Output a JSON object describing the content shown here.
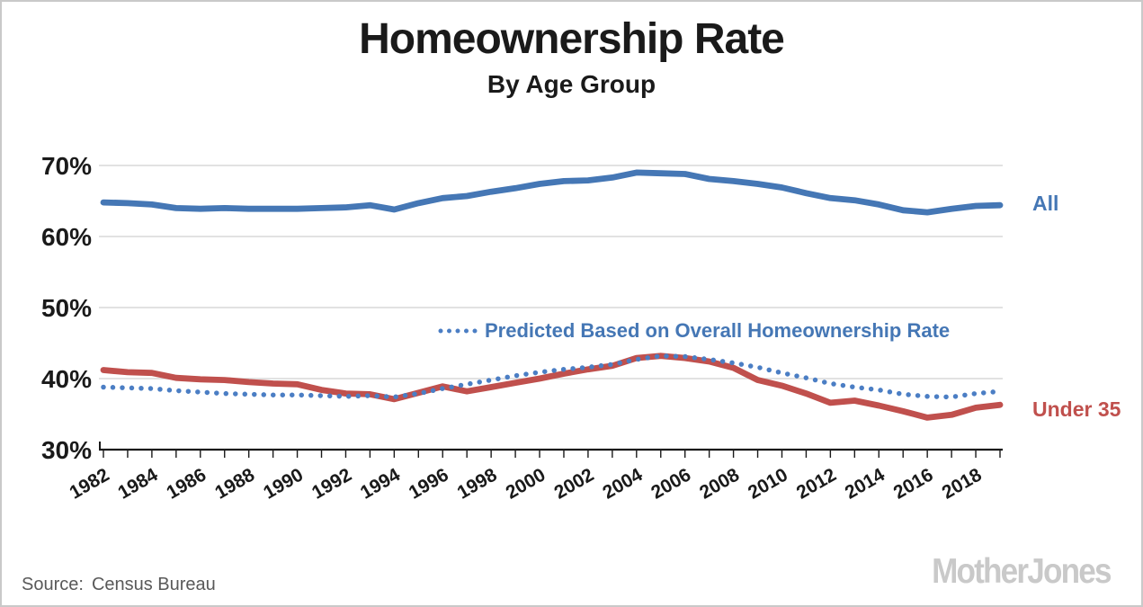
{
  "page": {
    "title": "Homeownership Rate",
    "subtitle": "By Age Group",
    "source_label": "Source:",
    "source_value": "Census Bureau",
    "brand": "MotherJones"
  },
  "legend": {
    "predicted_label": "Predicted Based on Overall Homeownership Rate"
  },
  "series_labels": {
    "all": "All",
    "under35": "Under 35"
  },
  "colors": {
    "all": "#4577b5",
    "under35": "#c0504d",
    "predicted": "#4b7ec4",
    "grid": "#d9d9d9",
    "axis": "#1a1a1a",
    "text": "#1a1a1a",
    "source": "#595959",
    "brand": "#c9c9c9"
  },
  "chart_data": {
    "type": "line",
    "title": "Homeownership Rate",
    "subtitle": "By Age Group",
    "xlabel": "",
    "ylabel": "",
    "ylim": [
      30,
      70
    ],
    "grid": "horizontal",
    "legend_position": "inside-plot-and-right-margin",
    "x": [
      1982,
      1983,
      1984,
      1985,
      1986,
      1987,
      1988,
      1989,
      1990,
      1991,
      1992,
      1993,
      1994,
      1995,
      1996,
      1997,
      1998,
      1999,
      2000,
      2001,
      2002,
      2003,
      2004,
      2005,
      2006,
      2007,
      2008,
      2009,
      2010,
      2011,
      2012,
      2013,
      2014,
      2015,
      2016,
      2017,
      2018,
      2019
    ],
    "x_tick_labels": [
      "1982",
      "1984",
      "1986",
      "1988",
      "1990",
      "1992",
      "1994",
      "1996",
      "1998",
      "2000",
      "2002",
      "2004",
      "2006",
      "2008",
      "2010",
      "2012",
      "2014",
      "2016",
      "2018"
    ],
    "y_ticks": [
      30,
      40,
      50,
      60,
      70
    ],
    "y_tick_labels": [
      "30%",
      "40%",
      "50%",
      "60%",
      "70%"
    ],
    "series": [
      {
        "id": "all",
        "name": "All",
        "style": "solid",
        "color": "#4577b5",
        "values": [
          64.8,
          64.7,
          64.5,
          64.0,
          63.9,
          64.0,
          63.9,
          63.9,
          63.9,
          64.0,
          64.1,
          64.4,
          63.8,
          64.7,
          65.4,
          65.7,
          66.3,
          66.8,
          67.4,
          67.8,
          67.9,
          68.3,
          69.0,
          68.9,
          68.8,
          68.1,
          67.8,
          67.4,
          66.9,
          66.1,
          65.4,
          65.1,
          64.5,
          63.7,
          63.4,
          63.9,
          64.3,
          64.4
        ]
      },
      {
        "id": "under35",
        "name": "Under 35",
        "style": "solid",
        "color": "#c0504d",
        "values": [
          41.2,
          40.9,
          40.8,
          40.1,
          39.9,
          39.8,
          39.5,
          39.3,
          39.2,
          38.4,
          37.9,
          37.8,
          37.1,
          38.0,
          38.9,
          38.2,
          38.8,
          39.4,
          40.0,
          40.7,
          41.3,
          41.8,
          42.9,
          43.2,
          42.9,
          42.4,
          41.5,
          39.8,
          39.0,
          37.9,
          36.6,
          36.9,
          36.2,
          35.4,
          34.5,
          34.9,
          35.9,
          36.3
        ]
      },
      {
        "id": "predicted",
        "name": "Predicted Based on Overall Homeownership Rate",
        "style": "dotted",
        "color": "#4b7ec4",
        "values": [
          38.8,
          38.7,
          38.6,
          38.3,
          38.1,
          37.9,
          37.8,
          37.7,
          37.7,
          37.6,
          37.5,
          37.6,
          37.4,
          37.9,
          38.6,
          39.2,
          39.8,
          40.4,
          40.9,
          41.3,
          41.6,
          42.0,
          42.7,
          43.2,
          43.1,
          42.7,
          42.2,
          41.6,
          40.8,
          40.1,
          39.3,
          38.8,
          38.4,
          37.8,
          37.5,
          37.4,
          37.9,
          38.2
        ]
      }
    ]
  }
}
